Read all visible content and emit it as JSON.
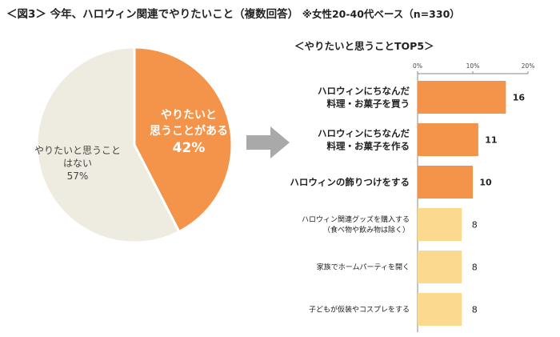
{
  "title": {
    "main": "＜図3＞ 今年、ハロウィン関連でやりたいこと（複数回答）",
    "note": "※女性20-40代ベース（n=330）"
  },
  "chart_data": [
    {
      "type": "pie",
      "slices": [
        {
          "label_lines": [
            "やりたいと",
            "思うことがある"
          ],
          "value": 42,
          "value_label": "42%",
          "color": "#f4944a"
        },
        {
          "label_lines": [
            "やりたいと思うこと",
            "はない"
          ],
          "value": 57,
          "value_label": "57%",
          "color": "#eeebe1"
        }
      ]
    },
    {
      "type": "bar",
      "orientation": "horizontal",
      "title": "＜やりたいと思うことTOP5＞",
      "xlim": [
        0,
        20
      ],
      "xticks": [
        "0%",
        "10%",
        "20%"
      ],
      "categories": [
        {
          "lines": [
            "ハロウィンにちなんだ",
            "料理・お菓子を買う"
          ],
          "bold": true
        },
        {
          "lines": [
            "ハロウィンにちなんだ",
            "料理・お菓子を作る"
          ],
          "bold": true
        },
        {
          "lines": [
            "ハロウィンの飾りつけをする"
          ],
          "bold": true
        },
        {
          "lines": [
            "ハロウィン関連グッズを購入する",
            "（食べ物や飲み物は除く）"
          ],
          "bold": false
        },
        {
          "lines": [
            "家族でホームパーティを開く"
          ],
          "bold": false
        },
        {
          "lines": [
            "子どもが仮装やコスプレをする"
          ],
          "bold": false
        }
      ],
      "values": [
        16,
        11,
        10,
        8,
        8,
        8
      ],
      "colors": [
        "#f4944a",
        "#f4944a",
        "#f4944a",
        "#fbd98f",
        "#fbd98f",
        "#fbd98f"
      ]
    }
  ]
}
